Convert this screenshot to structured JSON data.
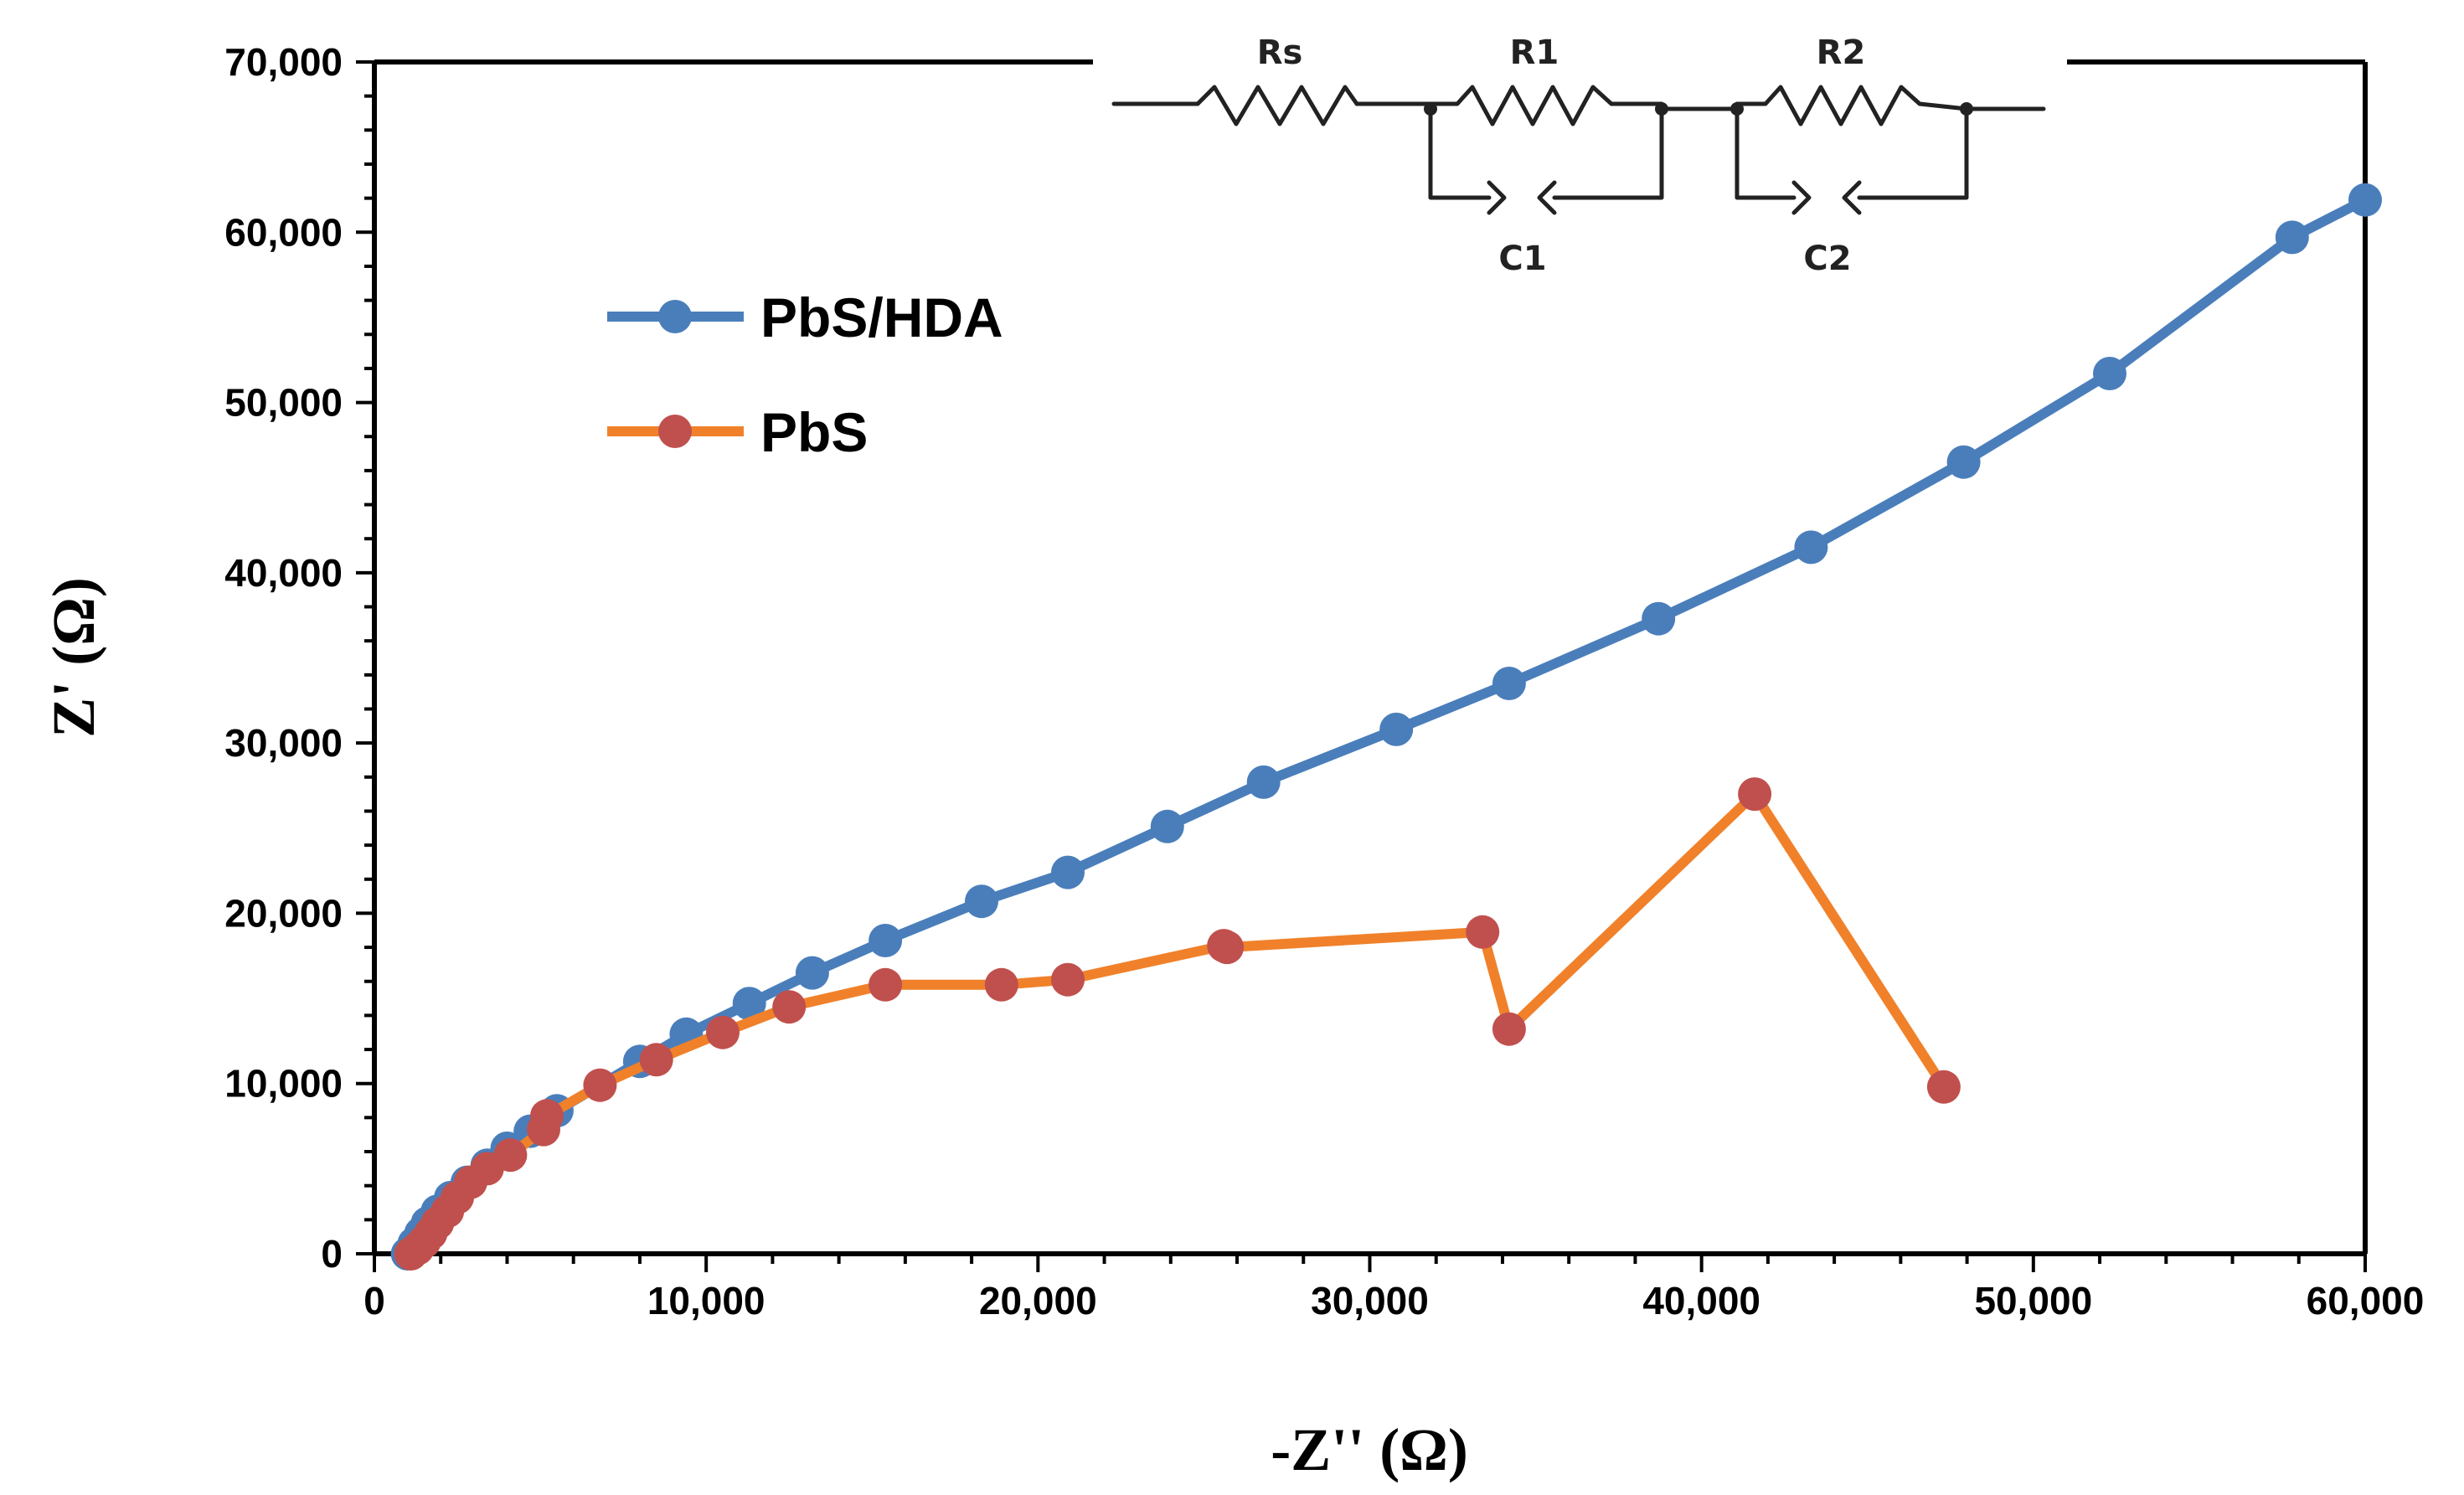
{
  "chart_data": {
    "type": "line",
    "title": "",
    "xlabel": "-Z'' (Ω)",
    "ylabel": "Z' (Ω)",
    "xlim": [
      0,
      60000
    ],
    "ylim": [
      0,
      70000
    ],
    "x_ticks": [
      "0",
      "10,000",
      "20,000",
      "30,000",
      "40,000",
      "50,000",
      "60,000"
    ],
    "y_ticks": [
      "0",
      "10,000",
      "20,000",
      "30,000",
      "40,000",
      "50,000",
      "60,000",
      "70,000"
    ],
    "x_tick_values": [
      0,
      10000,
      20000,
      30000,
      40000,
      50000,
      60000
    ],
    "y_tick_values": [
      0,
      10000,
      20000,
      30000,
      40000,
      50000,
      60000,
      70000
    ],
    "legend_position": "upper-left",
    "series": [
      {
        "name": "PbS/HDA",
        "line_color": "#4a7ebb",
        "marker_color": "#4a7ebb",
        "points": [
          [
            1000,
            0
          ],
          [
            1200,
            600
          ],
          [
            1400,
            1200
          ],
          [
            1600,
            1800
          ],
          [
            1900,
            2500
          ],
          [
            2300,
            3300
          ],
          [
            2800,
            4200
          ],
          [
            3400,
            5200
          ],
          [
            4000,
            6200
          ],
          [
            4700,
            7200
          ],
          [
            5500,
            8400
          ],
          [
            8000,
            11300
          ],
          [
            9400,
            12900
          ],
          [
            11300,
            14700
          ],
          [
            13200,
            16500
          ],
          [
            15400,
            18400
          ],
          [
            18300,
            20700
          ],
          [
            20900,
            22400
          ],
          [
            23900,
            25100
          ],
          [
            26800,
            27700
          ],
          [
            30800,
            30800
          ],
          [
            34200,
            33500
          ],
          [
            38700,
            37300
          ],
          [
            43300,
            41500
          ],
          [
            47900,
            46500
          ],
          [
            52300,
            51700
          ],
          [
            57800,
            59700
          ],
          [
            60000,
            61900
          ]
        ]
      },
      {
        "name": "PbS",
        "line_color": "#f0812a",
        "marker_color": "#c0504d",
        "points": [
          [
            1100,
            0
          ],
          [
            1300,
            300
          ],
          [
            1500,
            700
          ],
          [
            1700,
            1200
          ],
          [
            1900,
            1800
          ],
          [
            2200,
            2500
          ],
          [
            2500,
            3300
          ],
          [
            2900,
            4200
          ],
          [
            3400,
            5000
          ],
          [
            4100,
            5800
          ],
          [
            5100,
            7300
          ],
          [
            5200,
            8100
          ],
          [
            6800,
            9900
          ],
          [
            8500,
            11400
          ],
          [
            10500,
            13000
          ],
          [
            12500,
            14500
          ],
          [
            15400,
            15800
          ],
          [
            18900,
            15800
          ],
          [
            20900,
            16100
          ],
          [
            25600,
            18100
          ],
          [
            25700,
            18000
          ],
          [
            33400,
            18900
          ],
          [
            34200,
            13200
          ],
          [
            41600,
            27000
          ],
          [
            47300,
            9800
          ]
        ]
      }
    ]
  },
  "inset": {
    "labels": [
      "Rs",
      "R1",
      "R2",
      "C1",
      "C2"
    ]
  }
}
